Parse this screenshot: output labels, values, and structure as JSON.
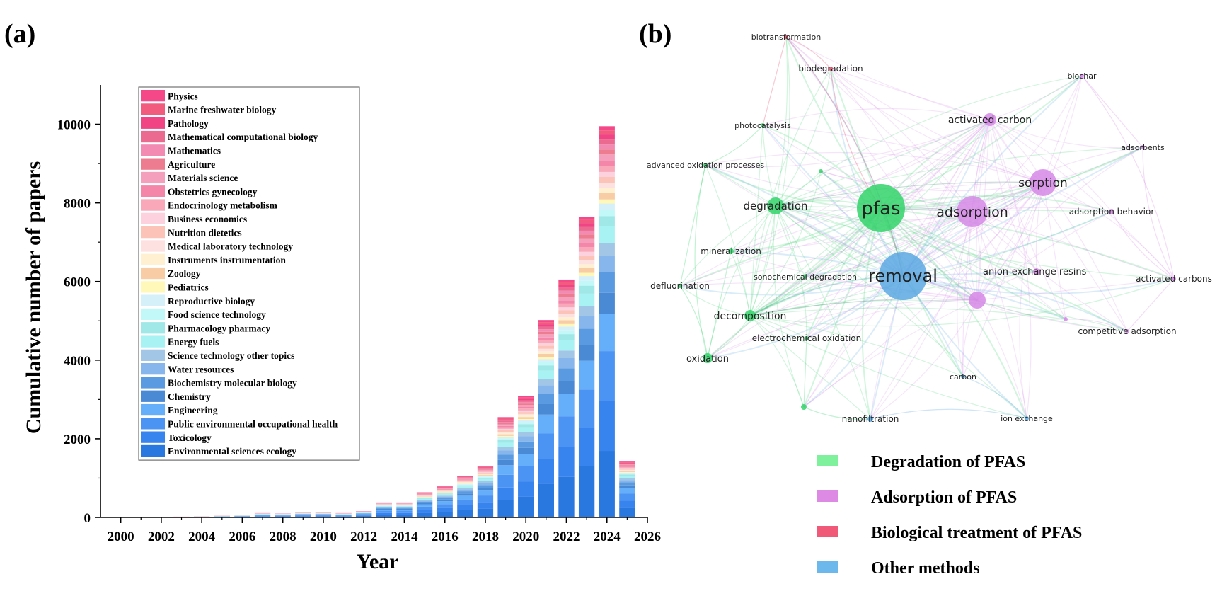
{
  "panel_a": {
    "label": "(a)",
    "chart_data": {
      "type": "bar",
      "stacked": true,
      "xlabel": "Year",
      "ylabel": "Cumulative number of papers",
      "ylim": [
        0,
        11000
      ],
      "xlim": [
        1999,
        2026
      ],
      "x_ticks": [
        2000,
        2002,
        2004,
        2006,
        2008,
        2010,
        2012,
        2014,
        2016,
        2018,
        2020,
        2022,
        2024,
        2026
      ],
      "y_ticks": [
        0,
        2000,
        4000,
        6000,
        8000,
        10000
      ],
      "years": [
        2000,
        2001,
        2002,
        2003,
        2004,
        2005,
        2006,
        2007,
        2008,
        2009,
        2010,
        2011,
        2012,
        2013,
        2014,
        2015,
        2016,
        2017,
        2018,
        2019,
        2020,
        2021,
        2022,
        2023,
        2024,
        2025
      ],
      "totals": [
        5,
        8,
        12,
        20,
        30,
        45,
        60,
        110,
        100,
        130,
        130,
        110,
        160,
        380,
        380,
        640,
        790,
        1060,
        1310,
        2550,
        3080,
        5020,
        6050,
        7650,
        9950,
        1420
      ],
      "legend_position": "top-left",
      "series": [
        {
          "name": "Environmental sciences ecology",
          "color": "#2878e0",
          "share": 0.16
        },
        {
          "name": "Toxicology",
          "color": "#3884ee",
          "share": 0.12
        },
        {
          "name": "Public environmental occupational health",
          "color": "#4c94f4",
          "share": 0.12
        },
        {
          "name": "Engineering",
          "color": "#64aefa",
          "share": 0.09
        },
        {
          "name": "Chemistry",
          "color": "#4a8ad4",
          "share": 0.05
        },
        {
          "name": "Biochemistry molecular biology",
          "color": "#5a9ae0",
          "share": 0.05
        },
        {
          "name": "Water resources",
          "color": "#86b6ec",
          "share": 0.04
        },
        {
          "name": "Science technology other topics",
          "color": "#a2c6e6",
          "share": 0.03
        },
        {
          "name": "Energy fuels",
          "color": "#a8f2f4",
          "share": 0.04
        },
        {
          "name": "Pharmacology pharmacy",
          "color": "#a0e8e8",
          "share": 0.025
        },
        {
          "name": "Food science technology",
          "color": "#c2f8f8",
          "share": 0.015
        },
        {
          "name": "Reproductive biology",
          "color": "#d6f0fa",
          "share": 0.015
        },
        {
          "name": "Pediatrics",
          "color": "#fff8b8",
          "share": 0.01
        },
        {
          "name": "Zoology",
          "color": "#f8cca4",
          "share": 0.015
        },
        {
          "name": "Instruments instrumentation",
          "color": "#fff0d2",
          "share": 0.012
        },
        {
          "name": "Medical laboratory technology",
          "color": "#fde0e0",
          "share": 0.012
        },
        {
          "name": "Nutrition dietetics",
          "color": "#fcc4b8",
          "share": 0.015
        },
        {
          "name": "Business economics",
          "color": "#fdd2de",
          "share": 0.012
        },
        {
          "name": "Endocrinology metabolism",
          "color": "#f8a8b8",
          "share": 0.015
        },
        {
          "name": "Obstetrics gynecology",
          "color": "#f486aa",
          "share": 0.012
        },
        {
          "name": "Materials science",
          "color": "#f4a0bc",
          "share": 0.015
        },
        {
          "name": "Agriculture",
          "color": "#ee7c90",
          "share": 0.012
        },
        {
          "name": "Mathematics",
          "color": "#f28ab2",
          "share": 0.012
        },
        {
          "name": "Mathematical computational biology",
          "color": "#ea6a90",
          "share": 0.012
        },
        {
          "name": "Pathology",
          "color": "#f04484",
          "share": 0.012
        },
        {
          "name": "Marine freshwater biology",
          "color": "#f25a7e",
          "share": 0.01
        },
        {
          "name": "Physics",
          "color": "#f44888",
          "share": 0.01
        }
      ]
    }
  },
  "panel_b": {
    "label": "(b)",
    "network": {
      "nodes": [
        {
          "id": "pfas",
          "label": "pfas",
          "cluster": "green",
          "size": 34,
          "font": 26
        },
        {
          "id": "removal",
          "label": "removal",
          "cluster": "blue",
          "size": 34,
          "font": 24
        },
        {
          "id": "adsorption",
          "label": "adsorption",
          "cluster": "purple",
          "size": 22,
          "font": 19
        },
        {
          "id": "sorption",
          "label": "sorption",
          "cluster": "purple",
          "size": 19,
          "font": 17
        },
        {
          "id": "degradation",
          "label": "degradation",
          "cluster": "green",
          "size": 12,
          "font": 15
        },
        {
          "id": "activated_carbon",
          "label": "activated carbon",
          "cluster": "purple",
          "size": 9,
          "font": 14
        },
        {
          "id": "decomposition",
          "label": "decomposition",
          "cluster": "green",
          "size": 8,
          "font": 14
        },
        {
          "id": "oxidation",
          "label": "oxidation",
          "cluster": "green",
          "size": 7,
          "font": 13
        },
        {
          "id": "unlabeled_purple",
          "label": "",
          "cluster": "purple",
          "size": 12,
          "font": 0
        },
        {
          "id": "anion_exchange",
          "label": "anion-exchange resins",
          "cluster": "purple",
          "size": 5,
          "font": 13
        },
        {
          "id": "mineralization",
          "label": "mineralization",
          "cluster": "green",
          "size": 4,
          "font": 12
        },
        {
          "id": "sonochemical",
          "label": "sonochemical degradation",
          "cluster": "green",
          "size": 3,
          "font": 11
        },
        {
          "id": "defluorination",
          "label": "defluorination",
          "cluster": "green",
          "size": 3,
          "font": 12
        },
        {
          "id": "electrochemical",
          "label": "electrochemical oxidation",
          "cluster": "green",
          "size": 3,
          "font": 12
        },
        {
          "id": "photocatalysis",
          "label": "photocatalysis",
          "cluster": "green",
          "size": 3,
          "font": 11
        },
        {
          "id": "aop",
          "label": "advanced oxidation processes",
          "cluster": "green",
          "size": 3,
          "font": 11
        },
        {
          "id": "biotransformation",
          "label": "biotransformation",
          "cluster": "red",
          "size": 3,
          "font": 11
        },
        {
          "id": "biodegradation",
          "label": "biodegradation",
          "cluster": "red",
          "size": 3,
          "font": 12
        },
        {
          "id": "biochar",
          "label": "biochar",
          "cluster": "purple",
          "size": 3,
          "font": 11
        },
        {
          "id": "adsorbents",
          "label": "adsorbents",
          "cluster": "purple",
          "size": 3,
          "font": 11
        },
        {
          "id": "adsorption_behavior",
          "label": "adsorption behavior",
          "cluster": "purple",
          "size": 4,
          "font": 12
        },
        {
          "id": "activated_carbons",
          "label": "activated carbons",
          "cluster": "purple",
          "size": 3,
          "font": 12
        },
        {
          "id": "competitive",
          "label": "competitive adsorption",
          "cluster": "purple",
          "size": 3,
          "font": 12
        },
        {
          "id": "carbon",
          "label": "carbon",
          "cluster": "blue",
          "size": 3,
          "font": 11
        },
        {
          "id": "nanofiltration",
          "label": "nanofiltration",
          "cluster": "blue",
          "size": 4,
          "font": 12
        },
        {
          "id": "ion_exchange",
          "label": "ion exchange",
          "cluster": "blue",
          "size": 3,
          "font": 11
        },
        {
          "id": "g_small1",
          "label": "",
          "cluster": "green",
          "size": 3,
          "font": 0
        },
        {
          "id": "g_small2",
          "label": "",
          "cluster": "green",
          "size": 4,
          "font": 0
        },
        {
          "id": "p_small1",
          "label": "",
          "cluster": "purple",
          "size": 3,
          "font": 0
        }
      ]
    },
    "legend": [
      {
        "label": "Degradation  of PFAS",
        "color": "#7ff09c"
      },
      {
        "label": "Adsorption of PFAS",
        "color": "#dc8ae4"
      },
      {
        "label": "Biological treatment of PFAS",
        "color": "#f05a78"
      },
      {
        "label": "Other methods",
        "color": "#6cb8ec"
      }
    ],
    "cluster_colors": {
      "green": "#33d36a",
      "purple": "#d688e6",
      "red": "#e84a66",
      "blue": "#5aa8e2"
    }
  }
}
